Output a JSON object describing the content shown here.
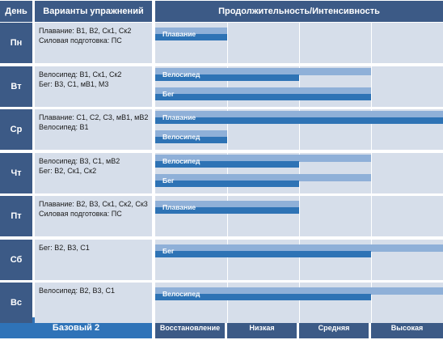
{
  "headers": {
    "day": "День",
    "exercises": "Варианты упражнений",
    "intensity": "Продолжительность/Интенсивность"
  },
  "days": [
    {
      "day": "Пн",
      "exercises": [
        "Плавание: В1, В2, Ск1, Ск2",
        "Силовая подготовка: ПС"
      ],
      "bars": [
        {
          "label": "Плавание",
          "total": 1.0,
          "high": 1.0
        }
      ]
    },
    {
      "day": "Вт",
      "exercises": [
        "Велосипед: В1, Ск1, Ск2",
        "Бег: В3, С1, мВ1, М3"
      ],
      "bars": [
        {
          "label": "Велосипед",
          "total": 2.0,
          "high": 3.0
        },
        {
          "label": "Бег",
          "total": 3.0,
          "high": 3.0
        }
      ]
    },
    {
      "day": "Ср",
      "exercises": [
        "Плавание: С1, С2, С3, мВ1, мВ2",
        "Велосипед: В1"
      ],
      "bars": [
        {
          "label": "Плавание",
          "total": 4.0,
          "high": 4.0
        },
        {
          "label": "Велосипед",
          "total": 1.0,
          "high": 1.0
        }
      ]
    },
    {
      "day": "Чт",
      "exercises": [
        "Велосипед: В3, С1, мВ2",
        "Бег: В2, Ск1, Ск2"
      ],
      "bars": [
        {
          "label": "Велосипед",
          "total": 2.0,
          "high": 3.0
        },
        {
          "label": "Бег",
          "total": 2.0,
          "high": 3.0
        }
      ]
    },
    {
      "day": "Пт",
      "exercises": [
        "Плавание: В2, В3, Ск1, Ск2, Ск3",
        "Силовая подготовка: ПС"
      ],
      "bars": [
        {
          "label": "Плавание",
          "total": 2.0,
          "high": 2.0
        }
      ]
    },
    {
      "day": "Сб",
      "exercises": [
        "Бег: В2, В3, С1"
      ],
      "bars": [
        {
          "label": "Бег",
          "total": 3.0,
          "high": 4.0
        }
      ]
    },
    {
      "day": "Вс",
      "exercises": [
        "Велосипед: В2, В3, С1"
      ],
      "bars": [
        {
          "label": "Велосипед",
          "total": 3.0,
          "high": 4.0
        }
      ]
    }
  ],
  "footer": {
    "plan": "Базовый 2",
    "levels": [
      "Восстановление",
      "Низкая",
      "Средняя",
      "Высокая"
    ]
  },
  "colors": {
    "header": "#3c5a86",
    "footer_plan": "#2f73b8",
    "cell": "#d6deea",
    "bar_main": "#2e73b5",
    "bar_light": "#8fb0d8"
  },
  "chart_data": {
    "type": "bar",
    "orientation": "horizontal",
    "x_scale_categories": [
      "Восстановление",
      "Низкая",
      "Средняя",
      "Высокая"
    ],
    "xlim": [
      0,
      4
    ],
    "categories": [
      "Пн",
      "Вт",
      "Ср",
      "Чт",
      "Пт",
      "Сб",
      "Вс"
    ],
    "series": [
      {
        "day": "Пн",
        "label": "Плавание",
        "value": 1.0,
        "extent": 1.0
      },
      {
        "day": "Вт",
        "label": "Велосипед",
        "value": 2.0,
        "extent": 3.0
      },
      {
        "day": "Вт",
        "label": "Бег",
        "value": 3.0,
        "extent": 3.0
      },
      {
        "day": "Ср",
        "label": "Плавание",
        "value": 4.0,
        "extent": 4.0
      },
      {
        "day": "Ср",
        "label": "Велосипед",
        "value": 1.0,
        "extent": 1.0
      },
      {
        "day": "Чт",
        "label": "Велосипед",
        "value": 2.0,
        "extent": 3.0
      },
      {
        "day": "Чт",
        "label": "Бег",
        "value": 2.0,
        "extent": 3.0
      },
      {
        "day": "Пт",
        "label": "Плавание",
        "value": 2.0,
        "extent": 2.0
      },
      {
        "day": "Сб",
        "label": "Бег",
        "value": 3.0,
        "extent": 4.0
      },
      {
        "day": "Вс",
        "label": "Велосипед",
        "value": 3.0,
        "extent": 4.0
      }
    ]
  }
}
